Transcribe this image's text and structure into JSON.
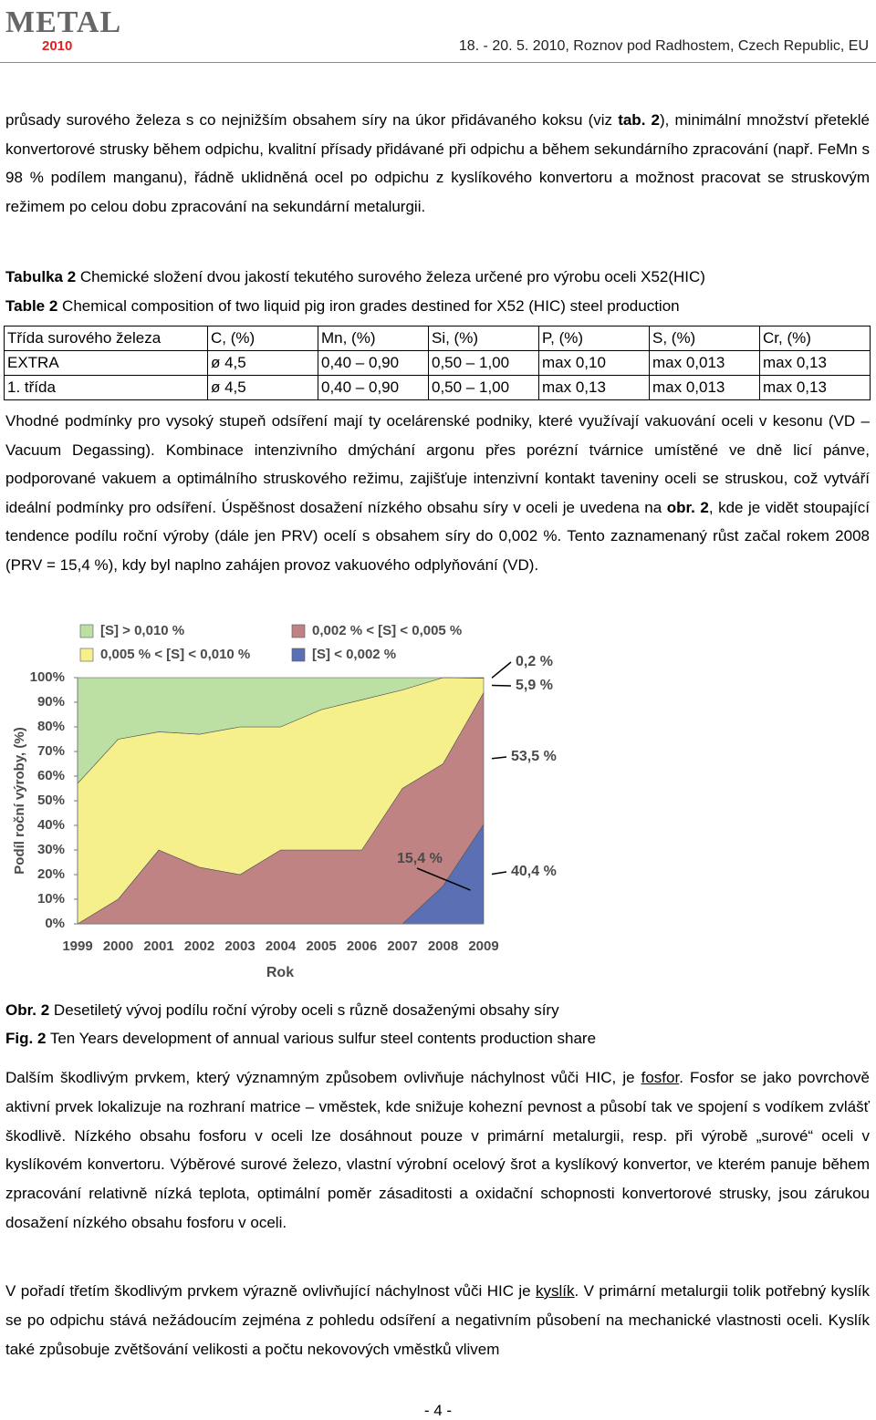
{
  "header": {
    "logo": "METAL",
    "logo_year": "2010",
    "conference": "18. - 20. 5. 2010, Roznov pod Radhostem, Czech Republic, EU"
  },
  "paragraphs": [
    [
      {
        "text": "průsady surového železa s co nejnižším obsahem síry na úkor přidávaného koksu (viz "
      },
      {
        "text": "tab. 2",
        "bold": true
      },
      {
        "text": "), minimální množství přeteklé konvertorové strusky během odpichu, kvalitní přísady přidávané při odpichu a během sekundárního zpracování (např. FeMn s 98 % podílem manganu), řádně uklidněná ocel po odpichu z kyslíkového konvertoru a možnost pracovat se struskovým režimem po celou dobu zpracování na sekundární metalurgii."
      }
    ],
    [
      {
        "text": "Vhodné podmínky pro vysoký stupeň odsíření mají ty ocelárenské podniky, které využívají vakuování oceli v kesonu (VD – Vacuum Degassing). Kombinace intenzivního dmýchání argonu přes porézní tvárnice umístěné ve dně licí pánve, podporované vakuem a optimálního struskového režimu, zajišťuje intenzivní kontakt taveniny oceli se struskou, což vytváří ideální podmínky pro odsíření. Úspěšnost dosažení nízkého obsahu síry v oceli je uvedena na "
      },
      {
        "text": "obr. 2",
        "bold": true
      },
      {
        "text": ", kde je vidět stoupající tendence podílu roční výroby (dále jen PRV) ocelí s obsahem síry do 0,002 %. Tento zaznamenaný růst začal rokem 2008 (PRV = 15,4 %), kdy byl naplno zahájen provoz vakuového odplyňování (VD)."
      }
    ],
    [
      {
        "text": "Dalším škodlivým prvkem, který významným způsobem ovlivňuje náchylnost vůči HIC, je "
      },
      {
        "text": "fosfor",
        "underline": true
      },
      {
        "text": ". Fosfor se jako povrchově aktivní prvek lokalizuje na rozhraní matrice – vměstek, kde snižuje kohezní pevnost a působí tak ve spojení s vodíkem zvlášť škodlivě. Nízkého obsahu fosforu v oceli lze dosáhnout pouze v primární metalurgii, resp. při výrobě „surové“ oceli v kyslíkovém konvertoru. Výběrové surové železo, vlastní výrobní ocelový šrot a kyslíkový konvertor, ve kterém panuje během zpracování relativně nízká teplota, optimální poměr zásaditosti a oxidační schopnosti konvertorové strusky, jsou zárukou dosažení nízkého obsahu fosforu v oceli."
      }
    ],
    [
      {
        "text": "V pořadí třetím škodlivým prvkem výrazně ovlivňující náchylnost vůči HIC je "
      },
      {
        "text": "kyslík",
        "underline": true
      },
      {
        "text": ". V primární metalurgii tolik potřebný kyslík se po odpichu stává nežádoucím zejména z pohledu odsíření a negativním působení na mechanické vlastnosti oceli. Kyslík také způsobuje zvětšování velikosti a počtu nekovových vměstků vlivem"
      }
    ]
  ],
  "table_caption": [
    [
      {
        "text": "Tabulka 2",
        "bold": true
      },
      {
        "text": "  Chemické složení dvou jakostí tekutého surového železa určené pro výrobu oceli X52(HIC)"
      }
    ],
    [
      {
        "text": "Table 2",
        "bold": true
      },
      {
        "text": "  Chemical composition of two liquid pig iron grades destined for X52 (HIC) steel production"
      }
    ]
  ],
  "table": {
    "header": [
      "Třída surového železa",
      "C, (%)",
      "Mn, (%)",
      "Si, (%)",
      "P, (%)",
      "S, (%)",
      "Cr, (%)"
    ],
    "rows": [
      [
        "EXTRA",
        "ø 4,5",
        "0,40 – 0,90",
        "0,50 – 1,00",
        "max 0,10",
        "max 0,013",
        "max 0,13"
      ],
      [
        "1. třída",
        "ø 4,5",
        "0,40 – 0,90",
        "0,50 – 1,00",
        "max 0,13",
        "max 0,013",
        "max 0,13"
      ]
    ]
  },
  "chart_data": {
    "type": "stacked_area",
    "x_label": "Rok",
    "y_label": "Podíl roční výroby, (%)",
    "categories": [
      "1999",
      "2000",
      "2001",
      "2002",
      "2003",
      "2004",
      "2005",
      "2006",
      "2007",
      "2008",
      "2009"
    ],
    "ylim": [
      0,
      100
    ],
    "yticks": [
      {
        "value": 0,
        "label": "0%"
      },
      {
        "value": 10,
        "label": "10%"
      },
      {
        "value": 20,
        "label": "20%"
      },
      {
        "value": 30,
        "label": "30%"
      },
      {
        "value": 40,
        "label": "40%"
      },
      {
        "value": 50,
        "label": "50%"
      },
      {
        "value": 60,
        "label": "60%"
      },
      {
        "value": 70,
        "label": "70%"
      },
      {
        "value": 80,
        "label": "80%"
      },
      {
        "value": 90,
        "label": "90%"
      },
      {
        "value": 100,
        "label": "100%"
      }
    ],
    "grid": false,
    "series": [
      {
        "name": "[S] < 0,002 %",
        "color": "#5a6fb4",
        "values": [
          0,
          0,
          0,
          0,
          0,
          0,
          0,
          0,
          0,
          15.4,
          40.4
        ],
        "value_labels": [
          null,
          null,
          null,
          null,
          null,
          null,
          null,
          null,
          null,
          "15,4 %",
          "40,4 %"
        ]
      },
      {
        "name": "0,002 % < [S] < 0,005 %",
        "color": "#bf8383",
        "values": [
          0,
          10,
          30,
          23,
          20,
          30,
          30,
          30,
          55,
          49.6,
          53.5
        ],
        "value_labels": [
          null,
          null,
          null,
          null,
          null,
          null,
          null,
          null,
          null,
          null,
          "53,5 %"
        ]
      },
      {
        "name": "0,005 % < [S] < 0,010 %",
        "color": "#f5ef8c",
        "values": [
          57,
          65,
          48,
          54,
          60,
          50,
          57,
          61,
          40,
          35,
          5.9
        ],
        "value_labels": [
          null,
          null,
          null,
          null,
          null,
          null,
          null,
          null,
          null,
          null,
          "5,9 %"
        ]
      },
      {
        "name": "[S] > 0,010 %",
        "color": "#bcdfa4",
        "values": [
          43,
          25,
          22,
          23,
          20,
          20,
          13,
          9,
          5,
          0,
          0.2
        ],
        "value_labels": [
          null,
          null,
          null,
          null,
          null,
          null,
          null,
          null,
          null,
          null,
          "0,2 %"
        ]
      }
    ]
  },
  "figure_caption": [
    [
      {
        "text": "Obr. 2",
        "bold": true
      },
      {
        "text": "  Desetiletý vývoj podílu roční výroby oceli s různě dosaženými obsahy síry"
      }
    ],
    [
      {
        "text": "Fig. 2",
        "bold": true
      },
      {
        "text": "  Ten Years development of annual various sulfur steel contents production share"
      }
    ]
  ],
  "page_number": "- 4 -"
}
